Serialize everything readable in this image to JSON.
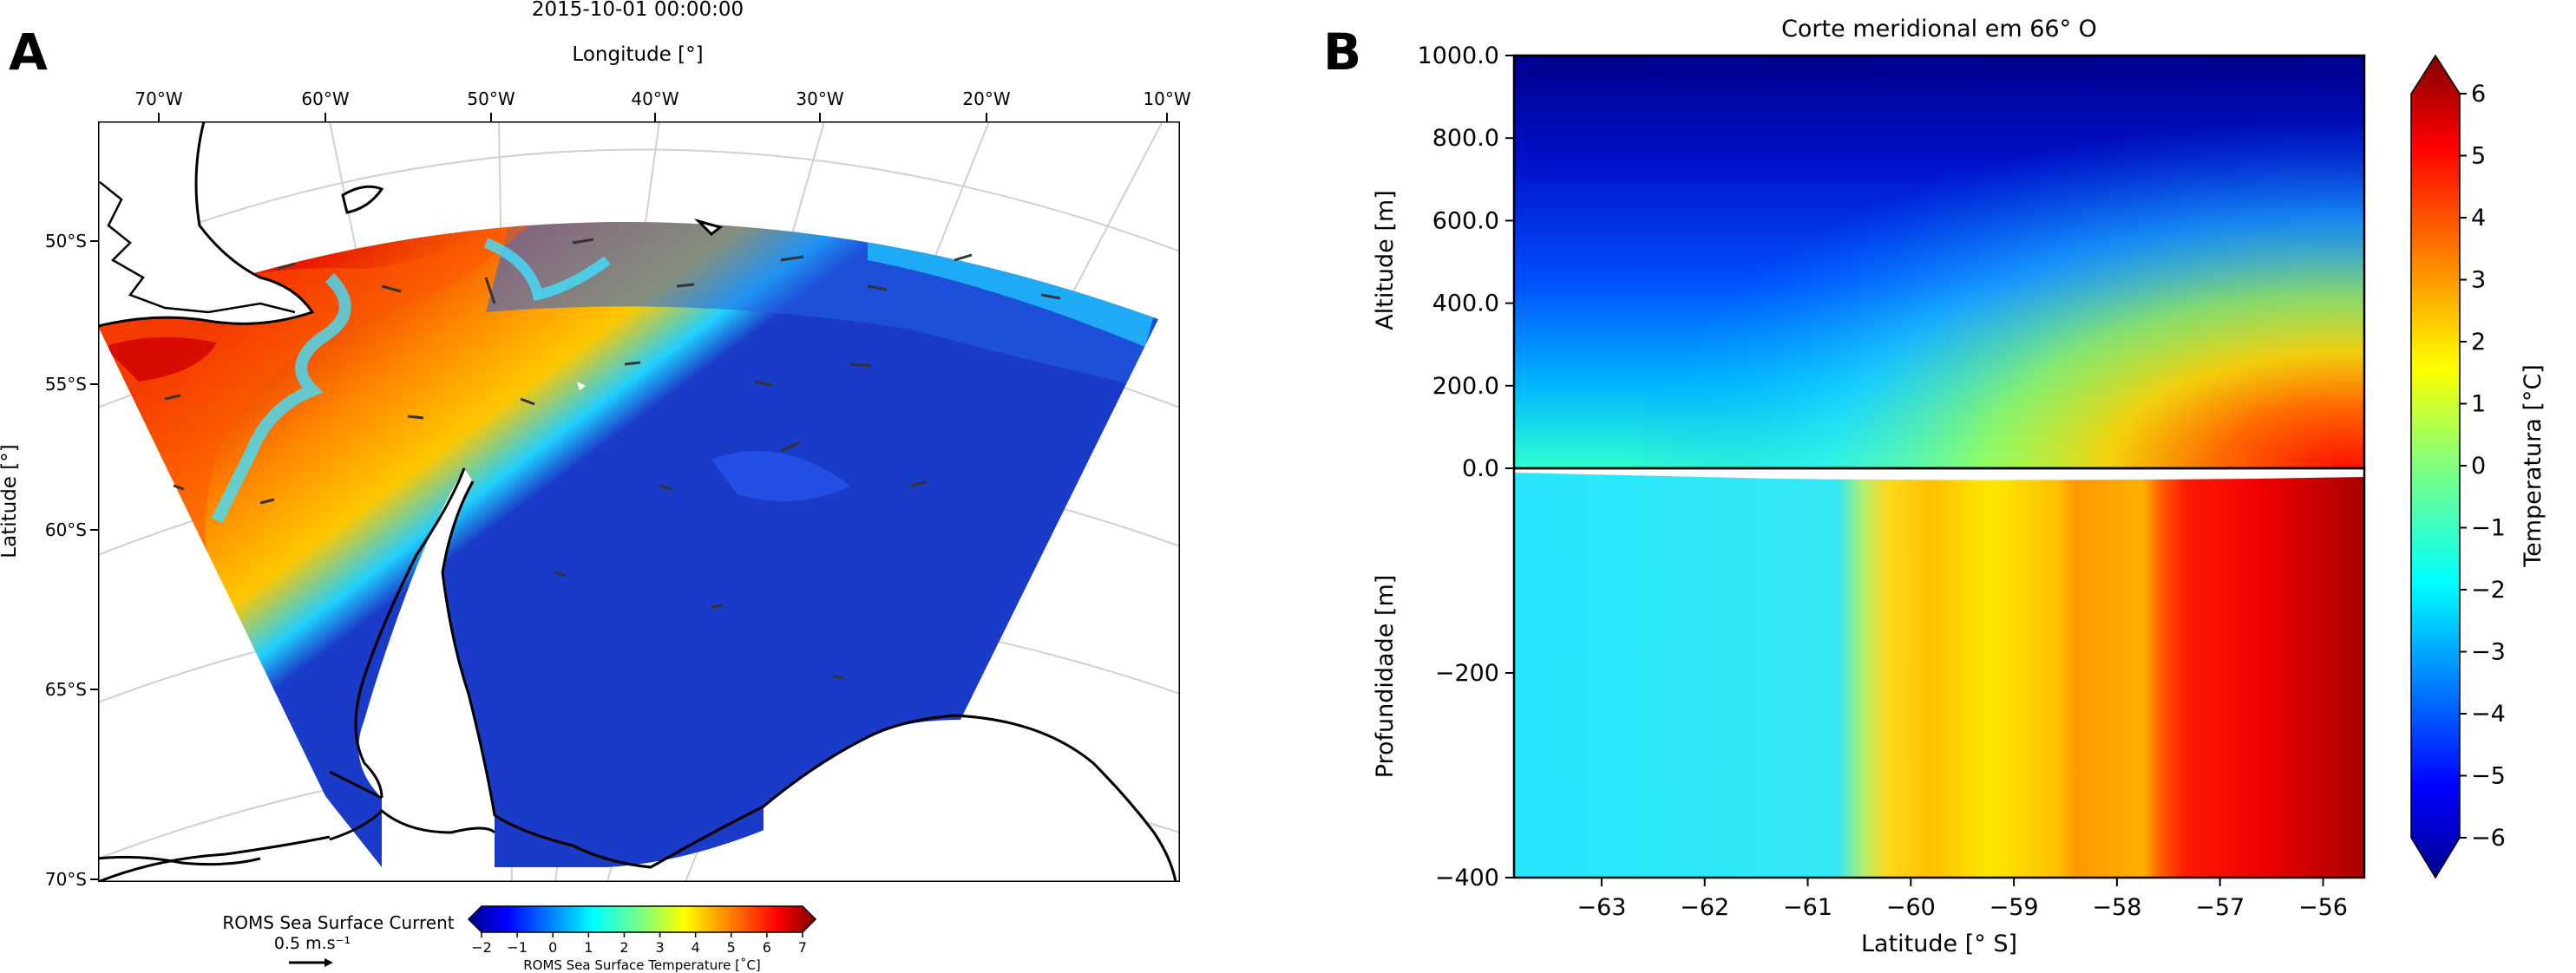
{
  "colors": {
    "map_ocean_cold": "#1a3bc8",
    "map_land_outline": "#000000",
    "grid": "#d0d0d0"
  },
  "chart_data": [
    {
      "panel_label": "A",
      "type": "heatmap",
      "title": "2015-10-01 00:00:00",
      "xlabel": "Longitude [°]",
      "ylabel": "Latitude [°]",
      "x_ticks": [
        "70°W",
        "60°W",
        "50°W",
        "40°W",
        "30°W",
        "20°W",
        "10°W"
      ],
      "y_ticks": [
        "50°S",
        "55°S",
        "60°S",
        "65°S",
        "70°S"
      ],
      "field": "ROMS Sea Surface Temperature",
      "colorbar": {
        "label": "ROMS Sea Surface Temperature [˚C]",
        "ticks": [
          "−2",
          "−1",
          "0",
          "1",
          "2",
          "3",
          "4",
          "5",
          "6",
          "7"
        ],
        "range": [
          -2,
          7
        ],
        "extend": "both",
        "colormap": "jet"
      },
      "quiver": {
        "label": "ROMS Sea Surface Current",
        "reference": "0.5 m.s⁻¹"
      }
    },
    {
      "panel_label": "B",
      "type": "heatmap",
      "title": "Corte meridional em 66° O",
      "xlabel": "Latitude [° S]",
      "x_ticks": [
        -63,
        -62,
        -61,
        -60,
        -59,
        -58,
        -57,
        -56
      ],
      "xlim": [
        -63.85,
        -55.6
      ],
      "upper": {
        "ylabel": "Altitude [m]",
        "y_ticks": [
          "0.0",
          "200.0",
          "400.0",
          "600.0",
          "800.0",
          "1000.0"
        ],
        "ylim": [
          0,
          1000
        ]
      },
      "lower": {
        "ylabel": "Profundidade [m]",
        "y_ticks": [
          "−200",
          "−400"
        ],
        "ylim": [
          -400,
          0
        ]
      },
      "colorbar": {
        "label": "Temperatura [°C]",
        "ticks": [
          "6",
          "5",
          "4",
          "3",
          "2",
          "1",
          "0",
          "−1",
          "−2",
          "−3",
          "−4",
          "−5",
          "−6"
        ],
        "range": [
          -6,
          6
        ],
        "extend": "both",
        "colormap": "jet"
      }
    }
  ]
}
